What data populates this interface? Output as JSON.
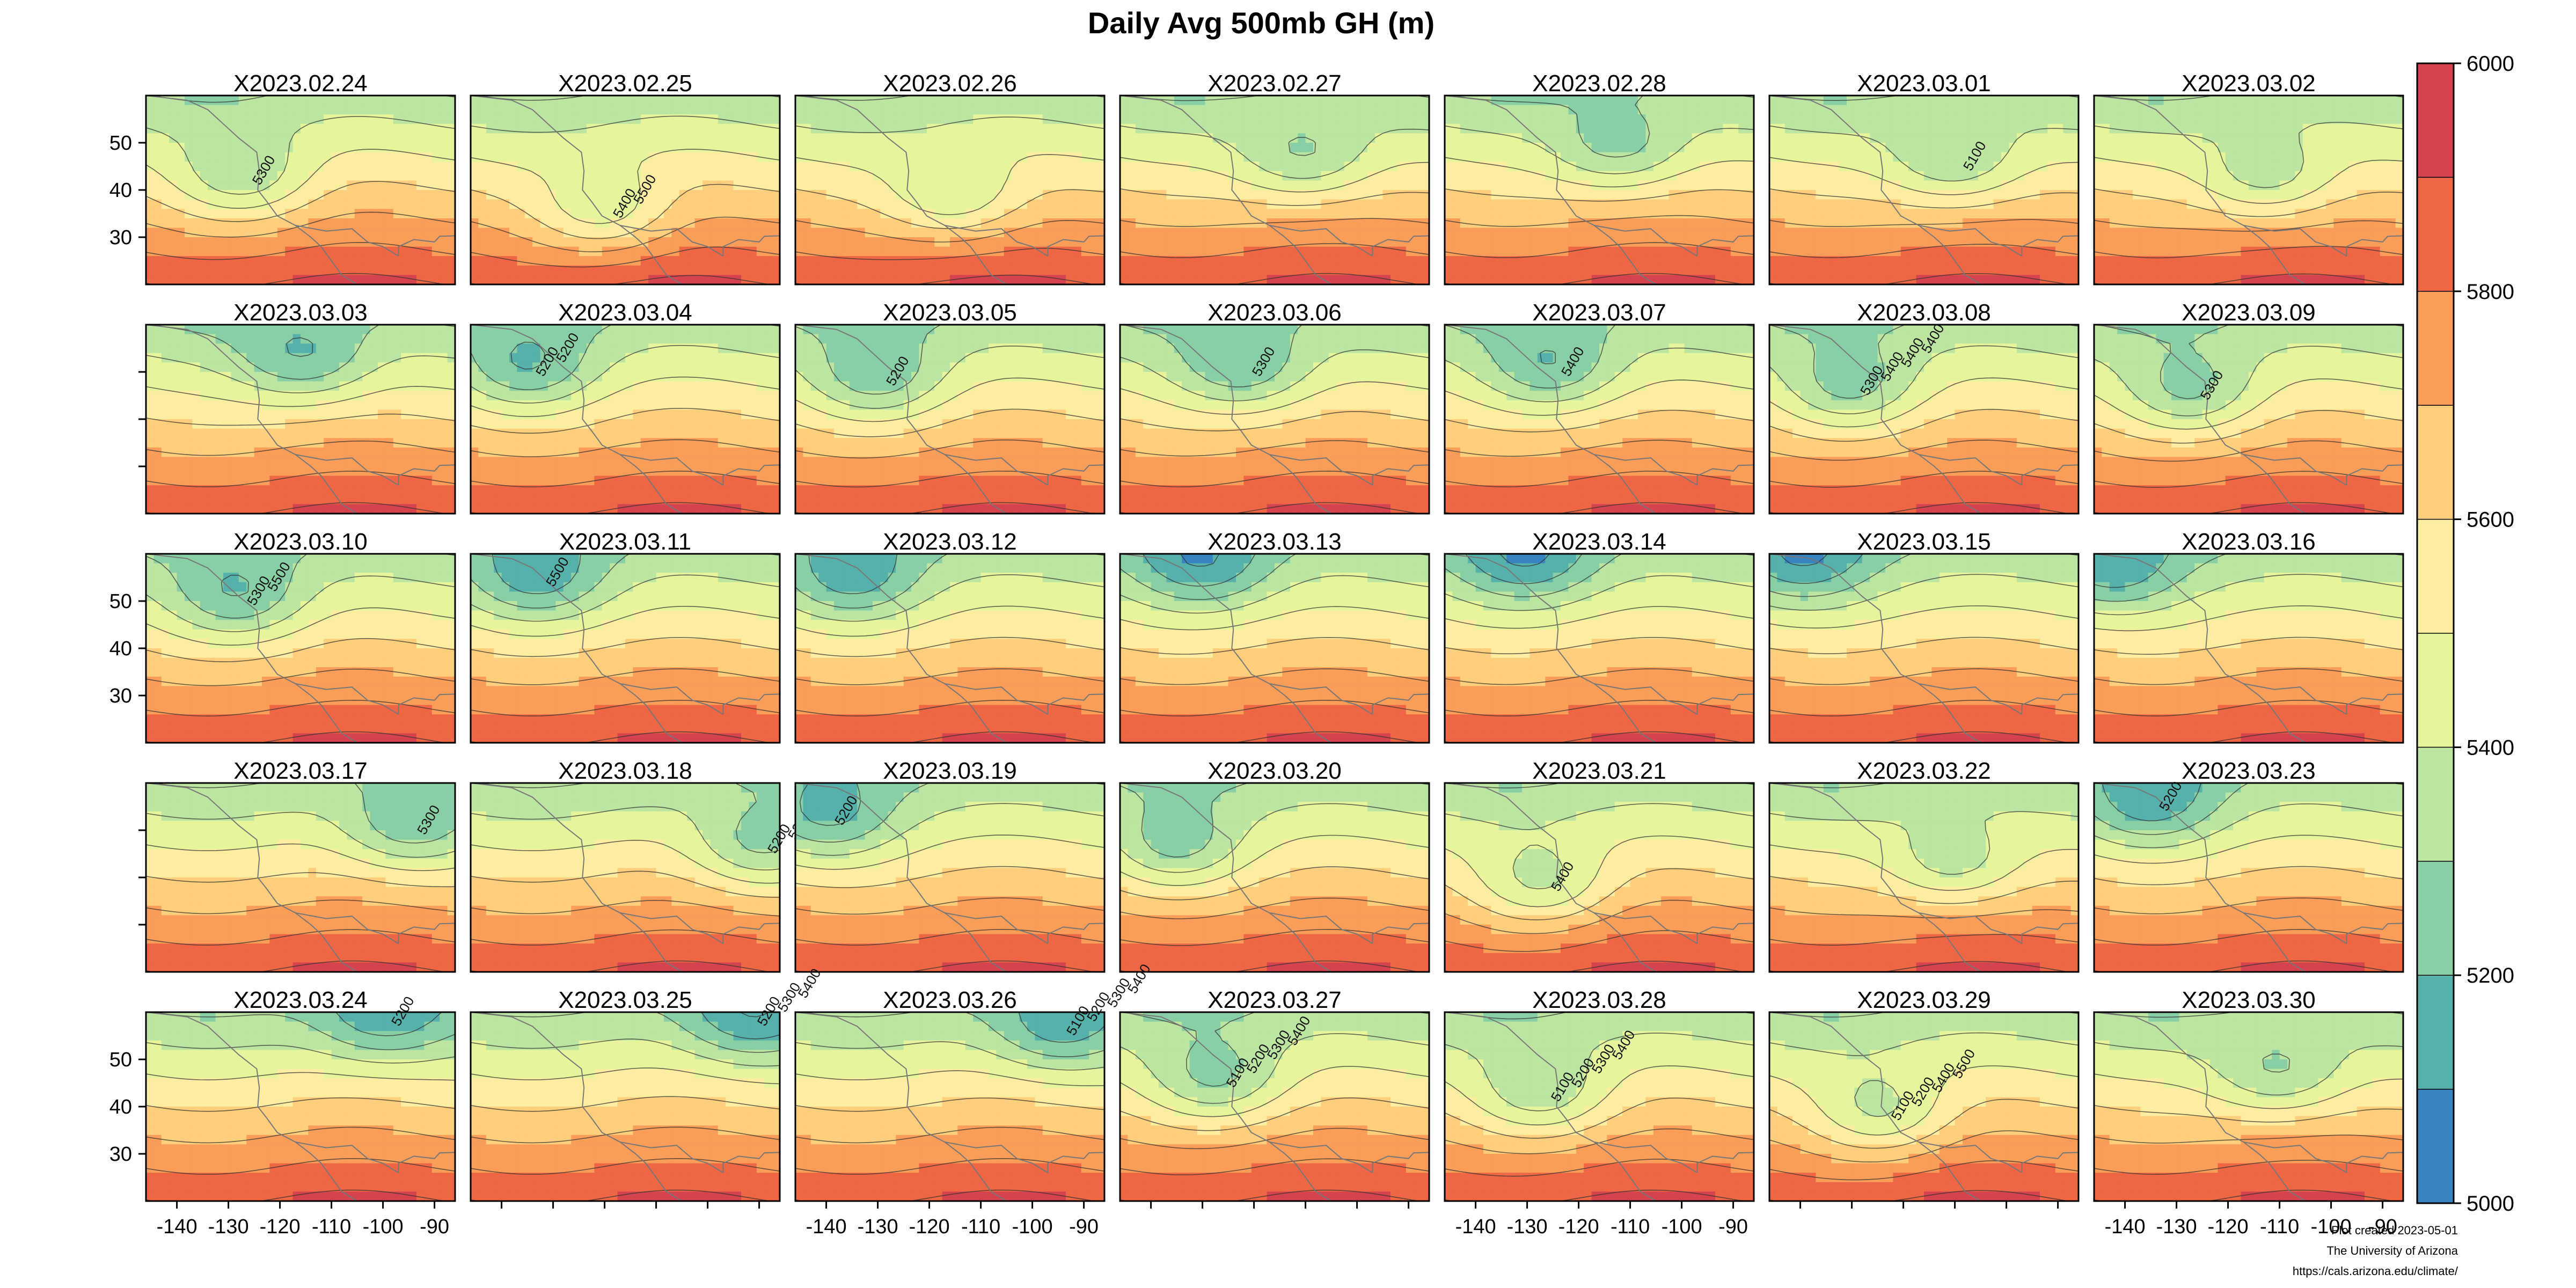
{
  "chart_data": {
    "type": "heatmap",
    "title": "Daily Avg 500mb GH (m)",
    "variable": "500mb geopotential height",
    "units": "m",
    "panels": [
      "X2023.02.24",
      "X2023.02.25",
      "X2023.02.26",
      "X2023.02.27",
      "X2023.02.28",
      "X2023.03.01",
      "X2023.03.02",
      "X2023.03.03",
      "X2023.03.04",
      "X2023.03.05",
      "X2023.03.06",
      "X2023.03.07",
      "X2023.03.08",
      "X2023.03.09",
      "X2023.03.10",
      "X2023.03.11",
      "X2023.03.12",
      "X2023.03.13",
      "X2023.03.14",
      "X2023.03.15",
      "X2023.03.16",
      "X2023.03.17",
      "X2023.03.18",
      "X2023.03.19",
      "X2023.03.20",
      "X2023.03.21",
      "X2023.03.22",
      "X2023.03.23",
      "X2023.03.24",
      "X2023.03.25",
      "X2023.03.26",
      "X2023.03.27",
      "X2023.03.28",
      "X2023.03.29",
      "X2023.03.30"
    ],
    "grid_rows": 5,
    "grid_cols": 7,
    "x_ticks": [
      "-140",
      "-130",
      "-120",
      "-110",
      "-100",
      "-90"
    ],
    "x_tick_values": [
      -140,
      -130,
      -120,
      -110,
      -100,
      -90
    ],
    "xlim": [
      -146,
      -86
    ],
    "y_ticks": [
      "50",
      "40",
      "30"
    ],
    "y_tick_values": [
      50,
      40,
      30
    ],
    "ylim": [
      20,
      60
    ],
    "x_axis_label_cols": [
      0,
      2,
      4,
      6
    ],
    "y_axis_label_rows": [
      0,
      2,
      4
    ],
    "colorbar": {
      "min": 5000,
      "max": 6000,
      "step": 50,
      "tick_labels": [
        "6000",
        "5800",
        "5600",
        "5400",
        "5200",
        "5000"
      ],
      "tick_values": [
        6000,
        5800,
        5600,
        5400,
        5200,
        5000
      ],
      "colors": [
        "#3784c1",
        "#56b1ab",
        "#89cfa5",
        "#bbe5a0",
        "#e6f59c",
        "#fdeda0",
        "#fece7c",
        "#fa9d59",
        "#ee6644",
        "#d5434f"
      ]
    },
    "visible_contour_labels": [
      {
        "panel": "X2023.02.24",
        "labels": [
          "5300"
        ]
      },
      {
        "panel": "X2023.02.25",
        "labels": [
          "5400",
          "5500"
        ]
      },
      {
        "panel": "X2023.03.01",
        "labels": [
          "5100"
        ]
      },
      {
        "panel": "X2023.03.04",
        "labels": [
          "5200",
          "5200"
        ]
      },
      {
        "panel": "X2023.03.05",
        "labels": [
          "5200"
        ]
      },
      {
        "panel": "X2023.03.06",
        "labels": [
          "5300"
        ]
      },
      {
        "panel": "X2023.03.07",
        "labels": [
          "5400"
        ]
      },
      {
        "panel": "X2023.03.08",
        "labels": [
          "5300",
          "5400",
          "5400",
          "5400"
        ]
      },
      {
        "panel": "X2023.03.09",
        "labels": [
          "5300"
        ]
      },
      {
        "panel": "X2023.03.10",
        "labels": [
          "5300",
          "5500"
        ]
      },
      {
        "panel": "X2023.03.11",
        "labels": [
          "5500"
        ]
      },
      {
        "panel": "X2023.03.17",
        "labels": [
          "5300"
        ]
      },
      {
        "panel": "X2023.03.18",
        "labels": [
          "5200",
          "5200"
        ]
      },
      {
        "panel": "X2023.03.19",
        "labels": [
          "5200"
        ]
      },
      {
        "panel": "X2023.03.21",
        "labels": [
          "5400"
        ]
      },
      {
        "panel": "X2023.03.23",
        "labels": [
          "5200"
        ]
      },
      {
        "panel": "X2023.03.24",
        "labels": [
          "5200"
        ]
      },
      {
        "panel": "X2023.03.25",
        "labels": [
          "5200",
          "5300",
          "5400"
        ]
      },
      {
        "panel": "X2023.03.26",
        "labels": [
          "5100",
          "5200",
          "5300",
          "5400"
        ]
      },
      {
        "panel": "X2023.03.27",
        "labels": [
          "5100",
          "5200",
          "5300",
          "5400"
        ]
      },
      {
        "panel": "X2023.03.28",
        "labels": [
          "5100",
          "5200",
          "5300",
          "5400"
        ]
      },
      {
        "panel": "X2023.03.29",
        "labels": [
          "5100",
          "5200",
          "5400",
          "5500"
        ]
      }
    ],
    "trough_centers": [
      {
        "panel": "X2023.02.24",
        "lon": -127,
        "lat": 42
      },
      {
        "panel": "X2023.02.25",
        "lon": -120,
        "lat": 35
      },
      {
        "panel": "X2023.02.26",
        "lon": -115,
        "lat": 38
      },
      {
        "panel": "X2023.02.27",
        "lon": -110,
        "lat": 46
      },
      {
        "panel": "X2023.02.28",
        "lon": -112,
        "lat": 48
      },
      {
        "panel": "X2023.03.01",
        "lon": -110,
        "lat": 45
      },
      {
        "panel": "X2023.03.02",
        "lon": -112,
        "lat": 42
      },
      {
        "panel": "X2023.03.03",
        "lon": -115,
        "lat": 52
      },
      {
        "panel": "X2023.03.04",
        "lon": -135,
        "lat": 50
      },
      {
        "panel": "X2023.03.05",
        "lon": -130,
        "lat": 48
      },
      {
        "panel": "X2023.03.06",
        "lon": -122,
        "lat": 50
      },
      {
        "panel": "X2023.03.07",
        "lon": -125,
        "lat": 50
      },
      {
        "panel": "X2023.03.08",
        "lon": -130,
        "lat": 46
      },
      {
        "panel": "X2023.03.09",
        "lon": -127,
        "lat": 45
      },
      {
        "panel": "X2023.03.10",
        "lon": -128,
        "lat": 50
      },
      {
        "panel": "X2023.03.11",
        "lon": -133,
        "lat": 54
      },
      {
        "panel": "X2023.03.12",
        "lon": -135,
        "lat": 54
      },
      {
        "panel": "X2023.03.13",
        "lon": -130,
        "lat": 57
      },
      {
        "panel": "X2023.03.14",
        "lon": -130,
        "lat": 58
      },
      {
        "panel": "X2023.03.15",
        "lon": -140,
        "lat": 58
      },
      {
        "panel": "X2023.03.16",
        "lon": -143,
        "lat": 56
      },
      {
        "panel": "X2023.03.17",
        "lon": -95,
        "lat": 50
      },
      {
        "panel": "X2023.03.18",
        "lon": -90,
        "lat": 46
      },
      {
        "panel": "X2023.03.19",
        "lon": -140,
        "lat": 52
      },
      {
        "panel": "X2023.03.20",
        "lon": -135,
        "lat": 46
      },
      {
        "panel": "X2023.03.21",
        "lon": -127,
        "lat": 38
      },
      {
        "panel": "X2023.03.22",
        "lon": -110,
        "lat": 42
      },
      {
        "panel": "X2023.03.23",
        "lon": -135,
        "lat": 55
      },
      {
        "panel": "X2023.03.24",
        "lon": -100,
        "lat": 58
      },
      {
        "panel": "X2023.03.25",
        "lon": -92,
        "lat": 58
      },
      {
        "panel": "X2023.03.26",
        "lon": -95,
        "lat": 56
      },
      {
        "panel": "X2023.03.27",
        "lon": -127,
        "lat": 45
      },
      {
        "panel": "X2023.03.28",
        "lon": -127,
        "lat": 42
      },
      {
        "panel": "X2023.03.29",
        "lon": -124,
        "lat": 38
      },
      {
        "panel": "X2023.03.30",
        "lon": -110,
        "lat": 46
      }
    ]
  },
  "credits": [
    "Plot created 2023-05-01",
    "The University of Arizona",
    "https://cals.arizona.edu/climate/"
  ]
}
